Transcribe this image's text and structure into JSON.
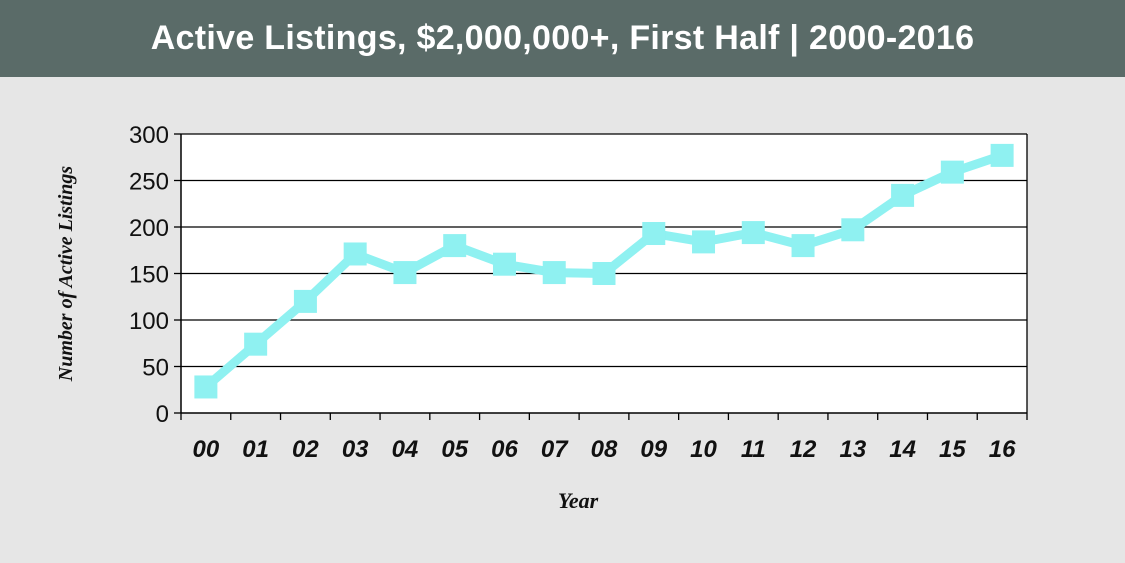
{
  "chart_data": {
    "type": "line",
    "title": "Active Listings, $2,000,000+, First Half | 2000-2016",
    "xlabel": "Year",
    "ylabel": "Number of Active Listings",
    "categories": [
      "00",
      "01",
      "02",
      "03",
      "04",
      "05",
      "06",
      "07",
      "08",
      "09",
      "10",
      "11",
      "12",
      "13",
      "14",
      "15",
      "16"
    ],
    "series": [
      {
        "values": [
          28,
          74,
          120,
          171,
          151,
          180,
          160,
          151,
          150,
          193,
          184,
          194,
          180,
          197,
          234,
          259,
          277
        ]
      }
    ],
    "ylim": [
      0,
      300
    ],
    "yticks": [
      0,
      50,
      100,
      150,
      200,
      250,
      300
    ],
    "grid": true,
    "legend": "none"
  },
  "colors": {
    "series": "#8ff1f1",
    "header": "#5a6b68",
    "background": "#e6e6e6",
    "plot_background": "#ffffff"
  }
}
